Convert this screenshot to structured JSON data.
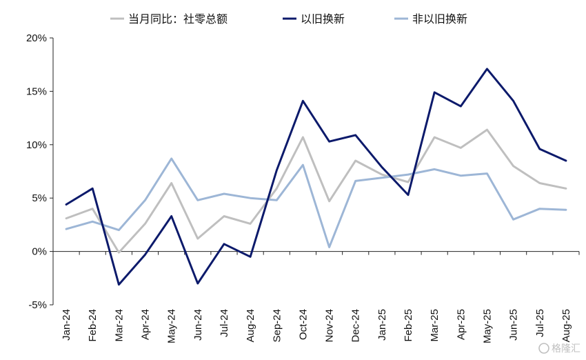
{
  "chart_data": {
    "type": "line",
    "categories": [
      "Jan-24",
      "Feb-24",
      "Mar-24",
      "Apr-24",
      "May-24",
      "Jun-24",
      "Jul-24",
      "Aug-24",
      "Sep-24",
      "Oct-24",
      "Nov-24",
      "Dec-24",
      "Jan-25",
      "Feb-25",
      "Mar-25",
      "Apr-25",
      "May-25",
      "Jun-25",
      "Jul-25",
      "Aug-25"
    ],
    "series": [
      {
        "name": "当月同比：社零总额",
        "color": "#bfbfbf",
        "values": [
          3.1,
          4.0,
          -0.1,
          2.6,
          6.4,
          1.2,
          3.3,
          2.6,
          5.9,
          10.7,
          4.7,
          8.5,
          7.2,
          6.5,
          10.7,
          9.7,
          11.4,
          8.0,
          6.4,
          5.9
        ]
      },
      {
        "name": "以旧换新",
        "color": "#0c1a6b",
        "values": [
          4.4,
          5.9,
          -3.1,
          -0.3,
          3.3,
          -3.0,
          0.7,
          -0.5,
          7.6,
          14.1,
          10.3,
          10.9,
          7.9,
          5.3,
          14.9,
          13.6,
          17.1,
          14.1,
          9.6,
          8.5
        ]
      },
      {
        "name": "非以旧换新",
        "color": "#9db6d6",
        "values": [
          2.1,
          2.8,
          2.0,
          4.8,
          8.7,
          4.8,
          5.4,
          5.0,
          4.8,
          8.1,
          0.4,
          6.6,
          6.9,
          7.2,
          7.7,
          7.1,
          7.3,
          3.0,
          4.0,
          3.9
        ]
      }
    ],
    "y_ticks": [
      {
        "value": 20,
        "label": "20%"
      },
      {
        "value": 15,
        "label": "15%"
      },
      {
        "value": 10,
        "label": "10%"
      },
      {
        "value": 5,
        "label": "5%"
      },
      {
        "value": 0,
        "label": "0%"
      },
      {
        "value": -5,
        "label": "-5%"
      }
    ],
    "negative_tick_color": "#e00000",
    "ylim": [
      -5,
      20
    ],
    "grid": false,
    "legend_position": "top"
  },
  "watermark": "格隆汇"
}
